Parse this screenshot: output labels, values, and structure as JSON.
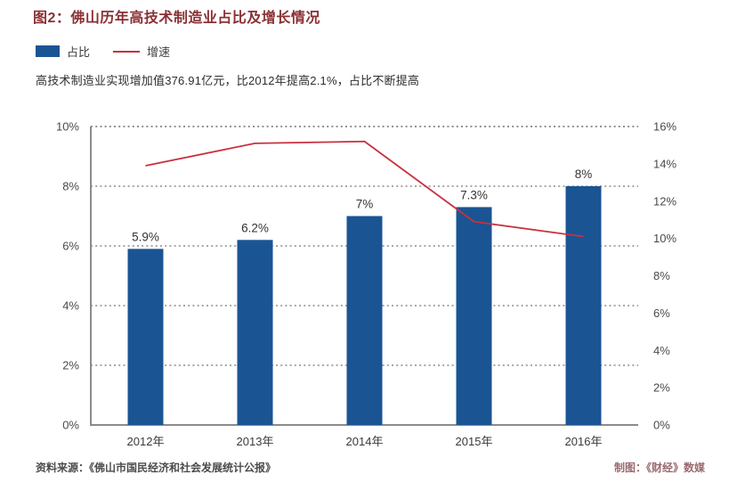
{
  "title": "图2：佛山历年高技术制造业占比及增长情况",
  "subtitle": "高技术制造业实现增加值376.91亿元，比2012年提高2.1%，占比不断提高",
  "legend": [
    {
      "label": "占比",
      "type": "bar",
      "color": "#1a5493"
    },
    {
      "label": "增速",
      "type": "line",
      "color": "#c9303e"
    }
  ],
  "footer": {
    "source": "资料来源：《佛山市国民经济和社会发展统计公报》",
    "credit": "制图：《财经》数媒"
  },
  "colors": {
    "title": "#8a3033",
    "bar": "#1a5493",
    "line": "#c9303e",
    "axis_text": "#4a4a4a",
    "grid": "#737373",
    "credit": "#9a6a70"
  },
  "chart_data": {
    "type": "bar",
    "subtype": "bar+line combo, dual y-axis",
    "categories": [
      "2012年",
      "2013年",
      "2014年",
      "2015年",
      "2016年"
    ],
    "series": [
      {
        "name": "占比",
        "type": "bar",
        "axis": "left",
        "values": [
          5.9,
          6.2,
          7.0,
          7.3,
          8.0
        ],
        "labels": [
          "5.9%",
          "6.2%",
          "7%",
          "7.3%",
          "8%"
        ],
        "color": "#1a5493"
      },
      {
        "name": "增速",
        "type": "line",
        "axis": "right",
        "values": [
          13.9,
          15.1,
          15.2,
          10.9,
          10.1
        ],
        "color": "#c9303e"
      }
    ],
    "left_axis": {
      "min": 0,
      "max": 10,
      "step": 2,
      "tick_suffix": "%"
    },
    "right_axis": {
      "min": 0,
      "max": 16,
      "step": 2,
      "tick_suffix": "%"
    },
    "grid": "horizontal dotted, left-axis steps",
    "legend_position": "top-left"
  }
}
